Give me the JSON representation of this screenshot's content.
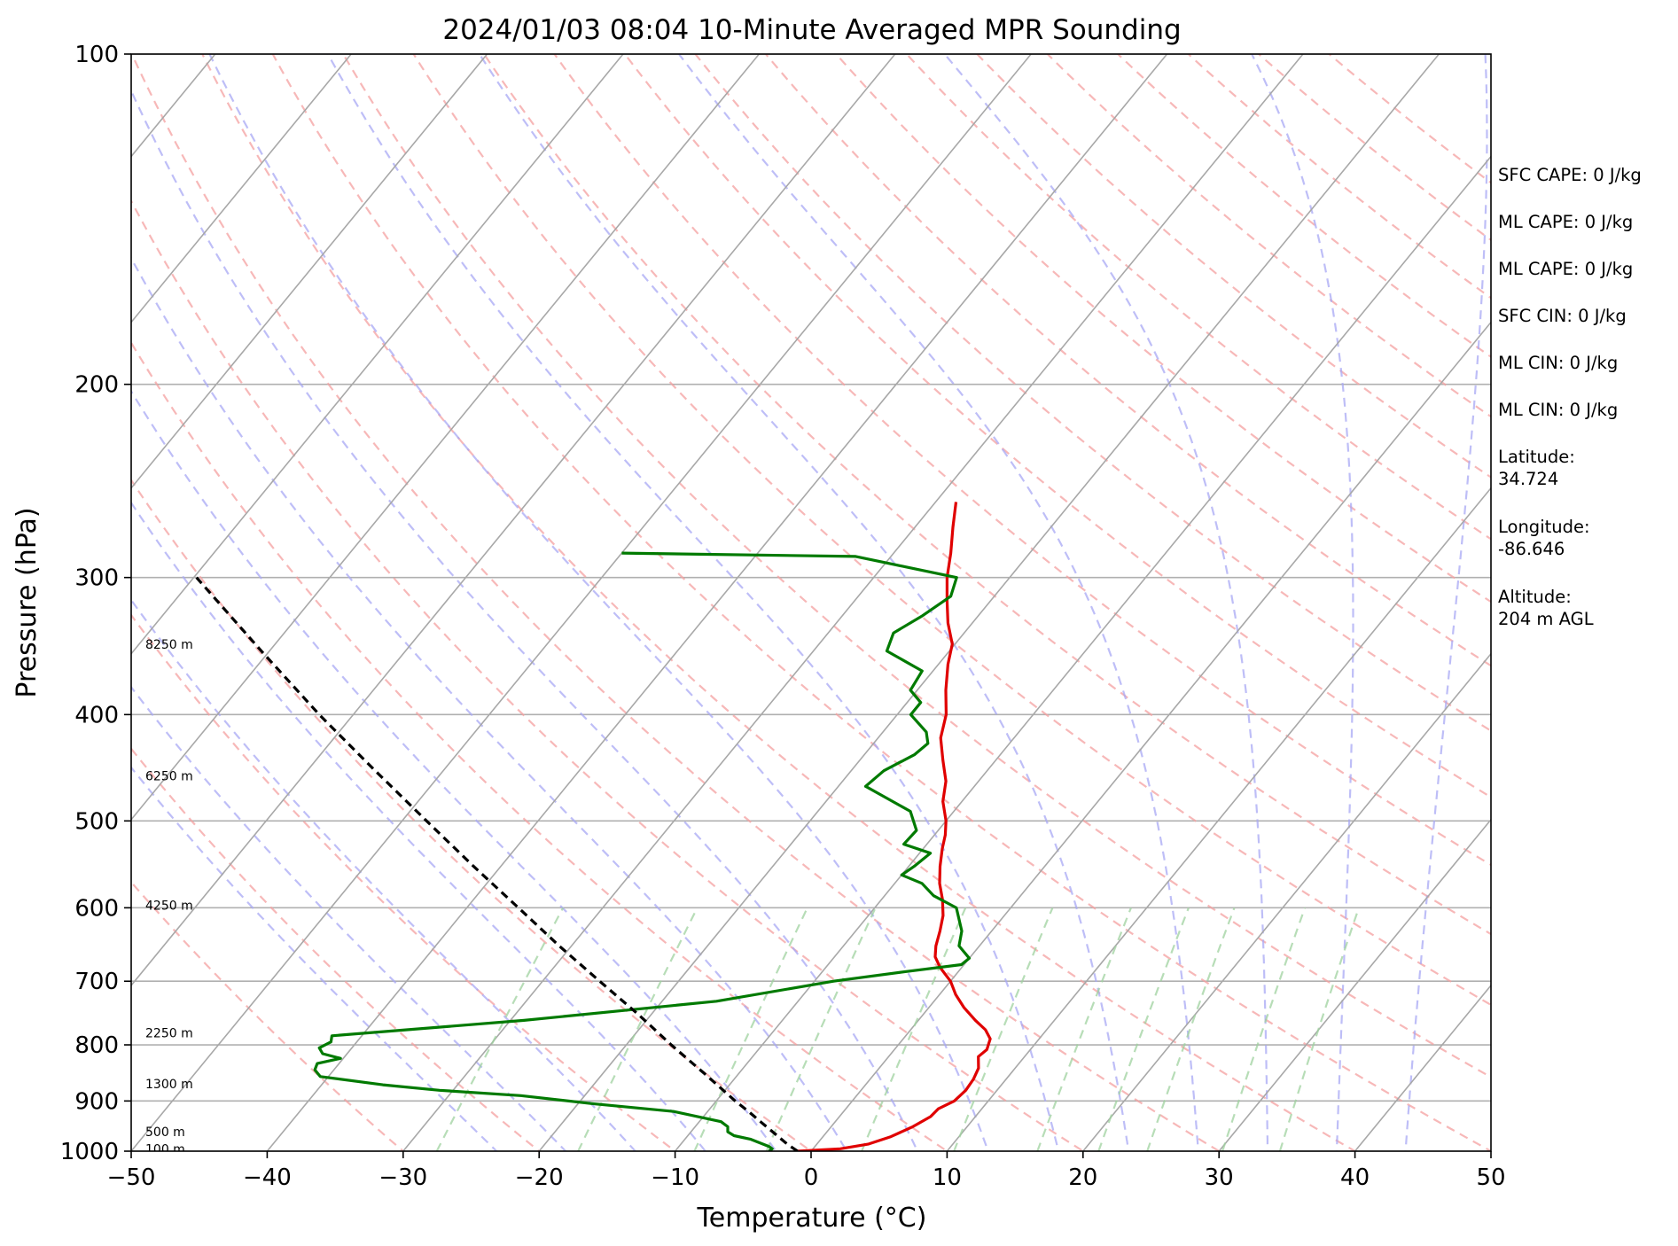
{
  "chart_data": {
    "type": "line",
    "subtype": "skew-t log-p",
    "title": "2024/01/03 08:04 10-Minute Averaged MPR Sounding",
    "xlabel": "Temperature (°C)",
    "ylabel": "Pressure (hPa)",
    "xlim": [
      -50,
      50
    ],
    "ylim": [
      1000,
      100
    ],
    "yscale": "log",
    "x_ticks": [
      "−50",
      "−40",
      "−30",
      "−20",
      "−10",
      "0",
      "10",
      "20",
      "30",
      "40",
      "50"
    ],
    "x_tick_values": [
      -50,
      -40,
      -30,
      -20,
      -10,
      0,
      10,
      20,
      30,
      40,
      50
    ],
    "y_ticks": [
      "100",
      "200",
      "300",
      "400",
      "500",
      "600",
      "700",
      "800",
      "900",
      "1000"
    ],
    "y_tick_values": [
      100,
      200,
      300,
      400,
      500,
      600,
      700,
      800,
      900,
      1000
    ],
    "grid": true,
    "series": [
      {
        "role": "temperature",
        "color": "#e00000",
        "points": [
          [
            1000,
            -1.0
          ],
          [
            995,
            2.0
          ],
          [
            985,
            3.8
          ],
          [
            970,
            5.0
          ],
          [
            950,
            6.0
          ],
          [
            930,
            6.7
          ],
          [
            915,
            6.8
          ],
          [
            900,
            7.5
          ],
          [
            880,
            7.7
          ],
          [
            860,
            7.6
          ],
          [
            840,
            7.3
          ],
          [
            820,
            6.6
          ],
          [
            808,
            6.8
          ],
          [
            790,
            6.4
          ],
          [
            775,
            5.5
          ],
          [
            760,
            4.2
          ],
          [
            740,
            2.6
          ],
          [
            720,
            1.2
          ],
          [
            700,
            0.0
          ],
          [
            680,
            -1.6
          ],
          [
            665,
            -2.6
          ],
          [
            650,
            -3.2
          ],
          [
            630,
            -3.8
          ],
          [
            610,
            -4.5
          ],
          [
            590,
            -5.5
          ],
          [
            570,
            -6.7
          ],
          [
            550,
            -7.7
          ],
          [
            530,
            -8.6
          ],
          [
            515,
            -9.2
          ],
          [
            500,
            -10.0
          ],
          [
            480,
            -11.4
          ],
          [
            460,
            -12.4
          ],
          [
            440,
            -13.9
          ],
          [
            420,
            -15.4
          ],
          [
            400,
            -16.4
          ],
          [
            380,
            -17.9
          ],
          [
            360,
            -19.3
          ],
          [
            345,
            -20.2
          ],
          [
            330,
            -21.8
          ],
          [
            315,
            -23.2
          ],
          [
            300,
            -24.6
          ],
          [
            285,
            -25.8
          ],
          [
            270,
            -27.2
          ],
          [
            256,
            -28.5
          ]
        ]
      },
      {
        "role": "dewpoint",
        "color": "#007a00",
        "points": [
          [
            1000,
            -3.1
          ],
          [
            995,
            -3.0
          ],
          [
            990,
            -3.4
          ],
          [
            975,
            -5.2
          ],
          [
            968,
            -6.6
          ],
          [
            960,
            -7.3
          ],
          [
            950,
            -7.6
          ],
          [
            940,
            -8.4
          ],
          [
            920,
            -12.5
          ],
          [
            905,
            -19.0
          ],
          [
            890,
            -24.7
          ],
          [
            880,
            -31.0
          ],
          [
            870,
            -35.5
          ],
          [
            855,
            -40.6
          ],
          [
            843,
            -41.4
          ],
          [
            832,
            -41.6
          ],
          [
            823,
            -40.2
          ],
          [
            815,
            -41.8
          ],
          [
            805,
            -42.4
          ],
          [
            795,
            -41.9
          ],
          [
            785,
            -42.2
          ],
          [
            760,
            -29.0
          ],
          [
            730,
            -16.0
          ],
          [
            700,
            -8.6
          ],
          [
            686,
            -3.9
          ],
          [
            676,
            -0.2
          ],
          [
            667,
            0.0
          ],
          [
            650,
            -1.5
          ],
          [
            630,
            -2.2
          ],
          [
            600,
            -4.0
          ],
          [
            585,
            -6.4
          ],
          [
            570,
            -8.0
          ],
          [
            560,
            -10.0
          ],
          [
            550,
            -9.6
          ],
          [
            535,
            -9.2
          ],
          [
            525,
            -11.7
          ],
          [
            510,
            -11.6
          ],
          [
            490,
            -13.2
          ],
          [
            465,
            -18.0
          ],
          [
            450,
            -17.6
          ],
          [
            435,
            -16.3
          ],
          [
            425,
            -16.0
          ],
          [
            415,
            -16.8
          ],
          [
            400,
            -19.0
          ],
          [
            390,
            -19.0
          ],
          [
            380,
            -20.5
          ],
          [
            365,
            -20.8
          ],
          [
            350,
            -24.6
          ],
          [
            337,
            -25.2
          ],
          [
            325,
            -24.1
          ],
          [
            312,
            -23.2
          ],
          [
            300,
            -23.9
          ],
          [
            287,
            -32.6
          ],
          [
            285,
            -50.0
          ]
        ]
      },
      {
        "role": "surface parcel",
        "color": "#000000",
        "style": "dashed",
        "points": [
          [
            1000,
            -1.0
          ],
          [
            985,
            -2.2
          ],
          [
            960,
            -4.0
          ],
          [
            940,
            -5.5
          ],
          [
            920,
            -7.0
          ],
          [
            900,
            -8.6
          ],
          [
            850,
            -12.5
          ],
          [
            800,
            -16.7
          ],
          [
            750,
            -21.0
          ],
          [
            700,
            -25.8
          ],
          [
            650,
            -30.9
          ],
          [
            600,
            -36.2
          ],
          [
            550,
            -42.0
          ],
          [
            500,
            -48.2
          ],
          [
            450,
            -55.0
          ],
          [
            400,
            -62.5
          ],
          [
            350,
            -70.6
          ],
          [
            300,
            -79.8
          ]
        ]
      }
    ],
    "height_labels": [
      "8250 m",
      "6250 m",
      "4250 m",
      "2250 m",
      "1300 m",
      "500 m",
      "100 m"
    ],
    "height_label_pressures": [
      345,
      455,
      597,
      780,
      868,
      960,
      995
    ]
  },
  "info": [
    "SFC CAPE: 0 J/kg",
    "ML CAPE: 0 J/kg",
    "ML CAPE: 0 J/kg",
    "SFC CIN: 0 J/kg",
    "ML CIN: 0 J/kg",
    "ML CIN: 0 J/kg",
    "Latitude:\n34.724",
    "Longitude:\n-86.646",
    "Altitude:\n204 m AGL"
  ]
}
